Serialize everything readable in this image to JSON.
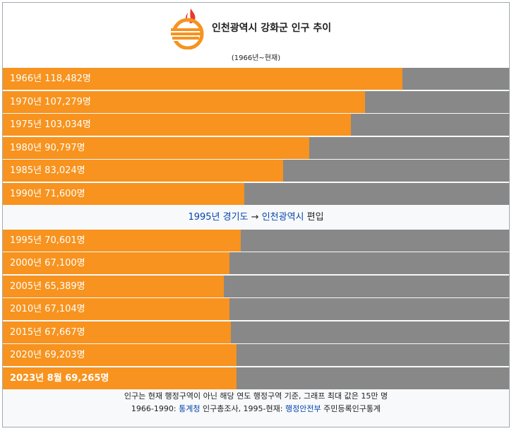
{
  "header": {
    "title": "인천광역시 강화군 인구 추이",
    "subtitle": "(1966년~현재)",
    "logo_icon": "ganghwa-county-emblem-icon"
  },
  "colors": {
    "bar": "#f7931e",
    "track": "#888888",
    "link": "#0645ad",
    "emblem_red": "#e8382d"
  },
  "note": {
    "text_link": "1995년 경기도",
    "arrow": "→",
    "text_link2": "인천광역시",
    "suffix": "편입"
  },
  "footer": {
    "line1": "인구는 현재 행정구역이 아닌 해당 연도 행정구역 기준, 그래프 최대 값은 15만 명",
    "line2_prefix": "1966-1990:",
    "line2_link1": "통계청",
    "line2_mid": "인구총조사, 1995-현재:",
    "line2_link2": "행정안전부",
    "line2_suffix": "주민등록인구통계"
  },
  "chart_data": {
    "type": "bar",
    "orientation": "horizontal",
    "title": "인천광역시 강화군 인구 추이",
    "subtitle": "(1966년~현재)",
    "xlim": [
      0,
      150000
    ],
    "categories": [
      "1966년",
      "1970년",
      "1975년",
      "1980년",
      "1985년",
      "1990년",
      "1995년",
      "2000년",
      "2005년",
      "2010년",
      "2015년",
      "2020년",
      "2023년 8월"
    ],
    "values": [
      118482,
      107279,
      103034,
      90797,
      83024,
      71600,
      70601,
      67100,
      65389,
      67104,
      67667,
      69203,
      69265
    ],
    "labels": [
      "1966년 118,482명",
      "1970년 107,279명",
      "1975년 103,034명",
      "1980년 90,797명",
      "1985년 83,024명",
      "1990년 71,600명",
      "1995년 70,601명",
      "2000년 67,100명",
      "2005년 65,389명",
      "2010년 67,104명",
      "2015년 67,667명",
      "2020년 69,203명",
      "2023년 8월 69,265명"
    ]
  }
}
